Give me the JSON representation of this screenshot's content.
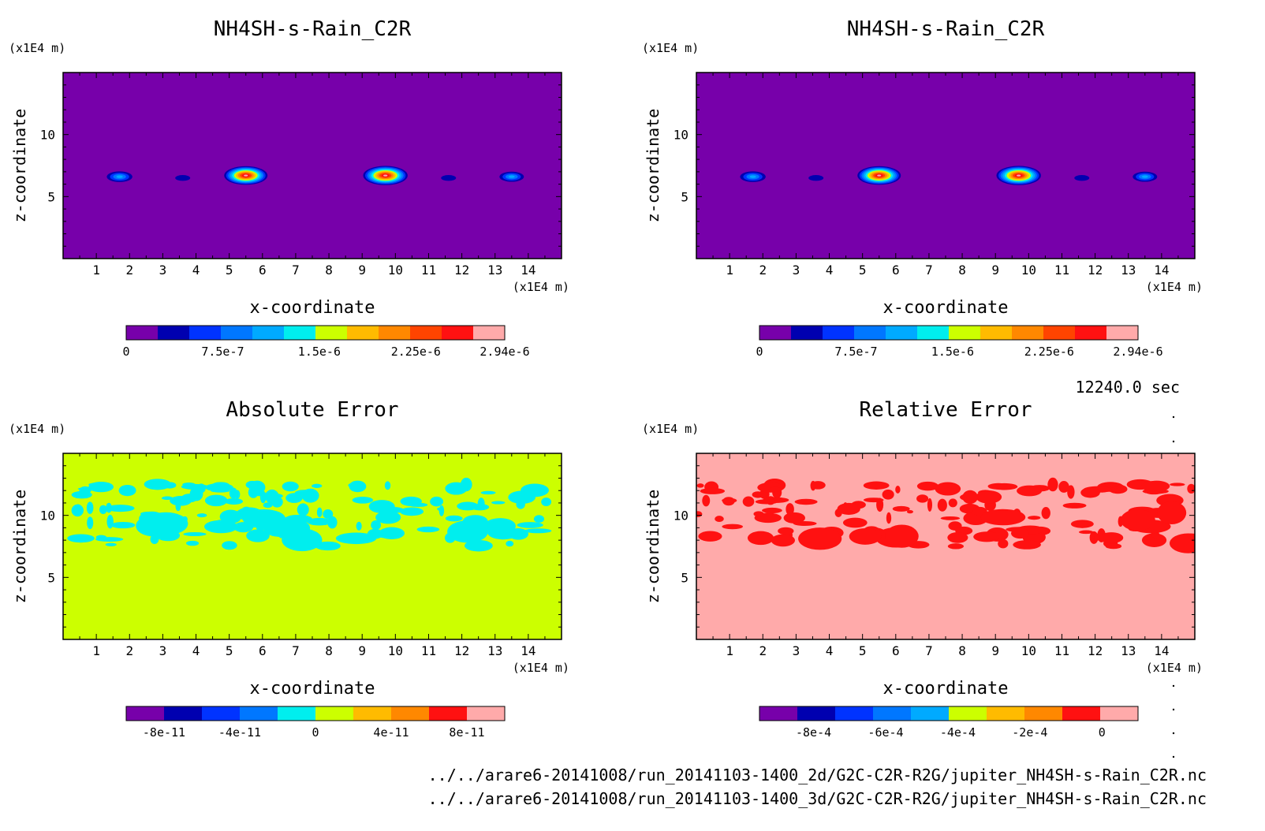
{
  "colors": {
    "purple": "#7700aa",
    "navy": "#0000b0",
    "blue": "#0033ff",
    "mid_blue": "#0077ff",
    "sky": "#00aaff",
    "cyan": "#00eeee",
    "yellow_green": "#ccff00",
    "gold": "#ffbb00",
    "orange": "#ff8800",
    "red_orange": "#ff4400",
    "red": "#ff1111",
    "pink": "#ffaaaa"
  },
  "timestamp": "12240.0 sec",
  "footer": {
    "path_2d": "../../arare6-20141008/run_20141103-1400_2d/G2C-C2R-R2G/jupiter_NH4SH-s-Rain_C2R.nc",
    "path_3d": "../../arare6-20141008/run_20141103-1400_3d/G2C-C2R-R2G/jupiter_NH4SH-s-Rain_C2R.nc"
  },
  "chart_data": [
    {
      "id": "2d",
      "type": "heatmap",
      "title": "NH4SH-s-Rain_C2R",
      "xlabel": "x-coordinate",
      "ylabel": "z-coordinate",
      "x_unit": "(x1E4 m)",
      "y_unit": "(x1E4 m)",
      "xlim": [
        0,
        15
      ],
      "ylim": [
        0,
        15
      ],
      "x_ticks": [
        1,
        2,
        3,
        4,
        5,
        6,
        7,
        8,
        9,
        10,
        11,
        12,
        13,
        14
      ],
      "y_ticks": [
        5,
        10
      ],
      "background": "purple",
      "blobs": [
        {
          "x": 1.7,
          "z": 6.6,
          "peak": 1.1e-06
        },
        {
          "x": 5.5,
          "z": 6.7,
          "peak": 2.6e-06
        },
        {
          "x": 9.7,
          "z": 6.7,
          "peak": 2.7e-06
        },
        {
          "x": 13.5,
          "z": 6.6,
          "peak": 1e-06
        },
        {
          "x": 3.6,
          "z": 6.5,
          "peak": 2e-07
        },
        {
          "x": 11.6,
          "z": 6.5,
          "peak": 2e-07
        }
      ],
      "colorbar": {
        "colors": [
          "purple",
          "navy",
          "blue",
          "mid_blue",
          "sky",
          "cyan",
          "yellow_green",
          "gold",
          "orange",
          "red_orange",
          "red",
          "pink"
        ],
        "labels": [
          "0",
          "7.5e-7",
          "1.5e-6",
          "2.25e-6",
          "2.94e-6"
        ],
        "label_values": [
          0,
          7.5e-07,
          1.5e-06,
          2.25e-06,
          2.94e-06
        ],
        "range": [
          0,
          2.94e-06
        ]
      }
    },
    {
      "id": "3d",
      "type": "heatmap",
      "title": "NH4SH-s-Rain_C2R",
      "xlabel": "x-coordinate",
      "ylabel": "z-coordinate",
      "x_unit": "(x1E4 m)",
      "y_unit": "(x1E4 m)",
      "xlim": [
        0,
        15
      ],
      "ylim": [
        0,
        15
      ],
      "x_ticks": [
        1,
        2,
        3,
        4,
        5,
        6,
        7,
        8,
        9,
        10,
        11,
        12,
        13,
        14
      ],
      "y_ticks": [
        5,
        10
      ],
      "background": "purple",
      "blobs": [
        {
          "x": 1.7,
          "z": 6.6,
          "peak": 1.1e-06
        },
        {
          "x": 5.5,
          "z": 6.7,
          "peak": 2.6e-06
        },
        {
          "x": 9.7,
          "z": 6.7,
          "peak": 2.7e-06
        },
        {
          "x": 13.5,
          "z": 6.6,
          "peak": 1e-06
        },
        {
          "x": 3.6,
          "z": 6.5,
          "peak": 2e-07
        },
        {
          "x": 11.6,
          "z": 6.5,
          "peak": 2e-07
        }
      ],
      "colorbar": {
        "colors": [
          "purple",
          "navy",
          "blue",
          "mid_blue",
          "sky",
          "cyan",
          "yellow_green",
          "gold",
          "orange",
          "red_orange",
          "red",
          "pink"
        ],
        "labels": [
          "0",
          "7.5e-7",
          "1.5e-6",
          "2.25e-6",
          "2.94e-6"
        ],
        "label_values": [
          0,
          7.5e-07,
          1.5e-06,
          2.25e-06,
          2.94e-06
        ],
        "range": [
          0,
          2.94e-06
        ]
      }
    },
    {
      "id": "abs",
      "type": "heatmap",
      "title": "Absolute Error",
      "xlabel": "x-coordinate",
      "ylabel": "z-coordinate",
      "x_unit": "(x1E4 m)",
      "y_unit": "(x1E4 m)",
      "xlim": [
        0,
        15
      ],
      "ylim": [
        0,
        15
      ],
      "x_ticks": [
        1,
        2,
        3,
        4,
        5,
        6,
        7,
        8,
        9,
        10,
        11,
        12,
        13,
        14
      ],
      "y_ticks": [
        5,
        10
      ],
      "background": "yellow_green",
      "patch_color": "cyan",
      "patch_band_z": [
        7.5,
        12.5
      ],
      "colorbar": {
        "colors": [
          "purple",
          "navy",
          "blue",
          "mid_blue",
          "cyan",
          "yellow_green",
          "gold",
          "orange",
          "red",
          "pink"
        ],
        "labels": [
          "-8e-11",
          "-4e-11",
          "0",
          "4e-11",
          "8e-11"
        ],
        "label_values": [
          -8e-11,
          -4e-11,
          0,
          4e-11,
          8e-11
        ],
        "range": [
          -1e-10,
          1e-10
        ]
      }
    },
    {
      "id": "rel",
      "type": "heatmap",
      "title": "Relative Error",
      "xlabel": "x-coordinate",
      "ylabel": "z-coordinate",
      "x_unit": "(x1E4 m)",
      "y_unit": "(x1E4 m)",
      "xlim": [
        0,
        15
      ],
      "ylim": [
        0,
        15
      ],
      "x_ticks": [
        1,
        2,
        3,
        4,
        5,
        6,
        7,
        8,
        9,
        10,
        11,
        12,
        13,
        14
      ],
      "y_ticks": [
        5,
        10
      ],
      "background": "pink",
      "patch_color": "red",
      "patch_band_z": [
        7.5,
        12.5
      ],
      "colorbar": {
        "colors": [
          "purple",
          "navy",
          "blue",
          "mid_blue",
          "sky",
          "yellow_green",
          "gold",
          "orange",
          "red",
          "pink"
        ],
        "labels": [
          "-8e-4",
          "-6e-4",
          "-4e-4",
          "-2e-4",
          "0"
        ],
        "label_values": [
          -0.0008,
          -0.0006,
          -0.0004,
          -0.0002,
          0
        ],
        "range": [
          -0.00095,
          0.0001
        ]
      }
    }
  ]
}
